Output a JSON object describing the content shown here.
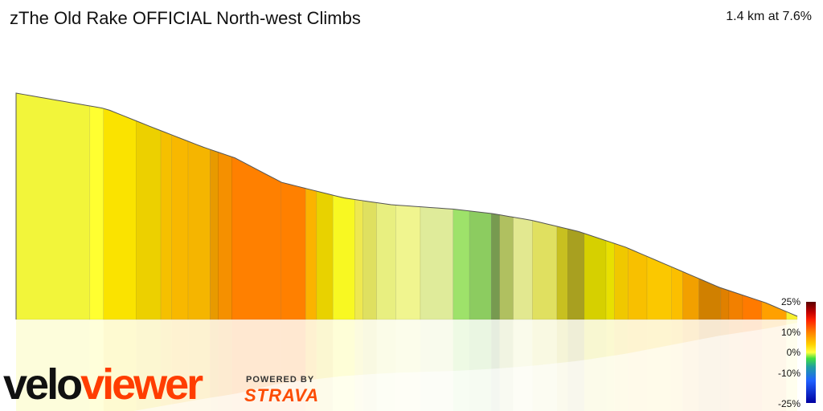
{
  "header": {
    "title": "zThe Old Rake OFFICIAL North-west Climbs",
    "summary": "1.4 km at 7.6%"
  },
  "legend": {
    "labels": [
      "25%",
      "10%",
      "0%",
      "-10%",
      "-25%"
    ]
  },
  "branding": {
    "logo_part1": "velo",
    "logo_part2": "viewer",
    "powered_by": "POWERED BY",
    "strava": "STRAVA"
  },
  "chart_data": {
    "type": "area",
    "description_free": true,
    "x_unit": "relative distance",
    "y_unit": "relative elevation",
    "profile_points": [
      [
        0,
        1.0
      ],
      [
        0.115,
        0.93
      ],
      [
        0.172,
        0.85
      ],
      [
        0.238,
        0.76
      ],
      [
        0.28,
        0.71
      ],
      [
        0.34,
        0.6
      ],
      [
        0.42,
        0.53
      ],
      [
        0.48,
        0.5
      ],
      [
        0.56,
        0.48
      ],
      [
        0.61,
        0.46
      ],
      [
        0.66,
        0.43
      ],
      [
        0.72,
        0.38
      ],
      [
        0.78,
        0.31
      ],
      [
        0.84,
        0.22
      ],
      [
        0.9,
        0.13
      ],
      [
        0.96,
        0.06
      ],
      [
        1.0,
        0.0
      ]
    ],
    "segment_colors": [
      "#f2f53a",
      "#ffff30",
      "#fae300",
      "#ecd000",
      "#f5c000",
      "#f8b800",
      "#f5b500",
      "#e89a00",
      "#f59000",
      "#ff8000",
      "#ff8000",
      "#fbb300",
      "#e8d200",
      "#f8f822",
      "#eee850",
      "#dfe060",
      "#e8ef80",
      "#f0f58f",
      "#dfeb9a",
      "#9ee26a",
      "#8ccc60",
      "#779a50",
      "#b0c060",
      "#e2e890",
      "#e0e060",
      "#c8c020",
      "#a8a020",
      "#d6d000",
      "#e8e000",
      "#f0c800",
      "#f8c000",
      "#fbc800",
      "#fbbf00",
      "#f2a000",
      "#d08000",
      "#e08000",
      "#f28000",
      "#ff7a00",
      "#ffa000",
      "#f8f030"
    ],
    "legend_scale": [
      "25%",
      "10%",
      "0%",
      "-10%",
      "-25%"
    ]
  }
}
